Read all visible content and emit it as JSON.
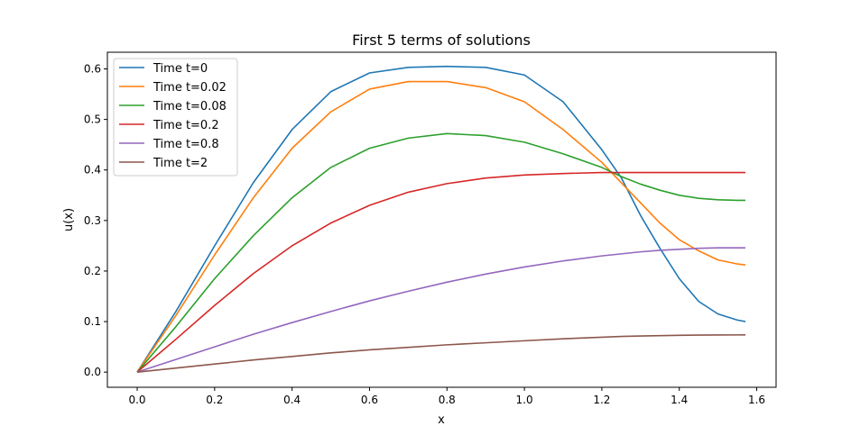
{
  "chart_data": {
    "type": "line",
    "title": "First 5 terms of solutions",
    "xlabel": "x",
    "ylabel": "u(x)",
    "xlim": [
      -0.077,
      1.65
    ],
    "ylim": [
      -0.03,
      0.633
    ],
    "xticks": [
      0.0,
      0.2,
      0.4,
      0.6,
      0.8,
      1.0,
      1.2,
      1.4,
      1.6
    ],
    "xtick_labels": [
      "0.0",
      "0.2",
      "0.4",
      "0.6",
      "0.8",
      "1.0",
      "1.2",
      "1.4",
      "1.6"
    ],
    "yticks": [
      0.0,
      0.1,
      0.2,
      0.3,
      0.4,
      0.5,
      0.6
    ],
    "ytick_labels": [
      "0.0",
      "0.1",
      "0.2",
      "0.3",
      "0.4",
      "0.5",
      "0.6"
    ],
    "grid": false,
    "legend_position": "top-left",
    "x": [
      0.0,
      0.1,
      0.2,
      0.3,
      0.4,
      0.5,
      0.6,
      0.7,
      0.8,
      0.9,
      1.0,
      1.1,
      1.2,
      1.25,
      1.3,
      1.35,
      1.4,
      1.45,
      1.5,
      1.55,
      1.5708
    ],
    "series": [
      {
        "name": "Time t=0",
        "color": "#1f77b4",
        "values": [
          0.0,
          0.12,
          0.25,
          0.375,
          0.48,
          0.555,
          0.592,
          0.603,
          0.605,
          0.603,
          0.588,
          0.535,
          0.44,
          0.385,
          0.31,
          0.245,
          0.185,
          0.14,
          0.115,
          0.103,
          0.1
        ]
      },
      {
        "name": "Time t=0.02",
        "color": "#ff7f0e",
        "values": [
          0.0,
          0.112,
          0.232,
          0.345,
          0.443,
          0.515,
          0.56,
          0.575,
          0.575,
          0.563,
          0.535,
          0.48,
          0.415,
          0.375,
          0.335,
          0.295,
          0.262,
          0.24,
          0.222,
          0.214,
          0.212
        ]
      },
      {
        "name": "Time t=0.08",
        "color": "#2ca02c",
        "values": [
          0.0,
          0.09,
          0.185,
          0.27,
          0.345,
          0.405,
          0.443,
          0.463,
          0.472,
          0.468,
          0.455,
          0.432,
          0.405,
          0.387,
          0.372,
          0.36,
          0.35,
          0.344,
          0.341,
          0.34,
          0.34
        ]
      },
      {
        "name": "Time t=0.2",
        "color": "#d62728",
        "values": [
          0.0,
          0.065,
          0.132,
          0.195,
          0.25,
          0.295,
          0.33,
          0.356,
          0.373,
          0.384,
          0.39,
          0.393,
          0.395,
          0.395,
          0.395,
          0.395,
          0.395,
          0.395,
          0.395,
          0.395,
          0.395
        ]
      },
      {
        "name": "Time t=0.8",
        "color": "#9467bd",
        "values": [
          0.0,
          0.025,
          0.05,
          0.075,
          0.098,
          0.12,
          0.141,
          0.16,
          0.178,
          0.194,
          0.208,
          0.22,
          0.23,
          0.234,
          0.238,
          0.241,
          0.243,
          0.245,
          0.246,
          0.246,
          0.246
        ]
      },
      {
        "name": "Time t=2",
        "color": "#8c564b",
        "values": [
          0.0,
          0.008,
          0.016,
          0.024,
          0.031,
          0.038,
          0.044,
          0.049,
          0.054,
          0.058,
          0.062,
          0.066,
          0.069,
          0.0705,
          0.0715,
          0.0722,
          0.0728,
          0.0732,
          0.0735,
          0.0736,
          0.0737
        ]
      }
    ]
  }
}
